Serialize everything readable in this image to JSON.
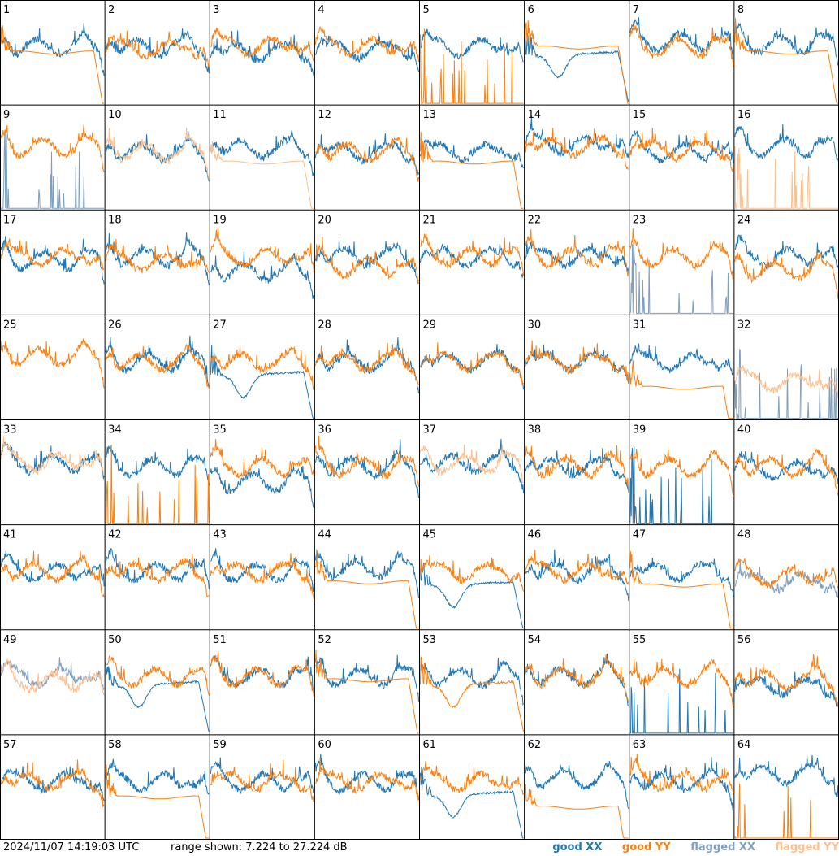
{
  "footer": {
    "timestamp": "2024/11/07 14:19:03 UTC",
    "range_text": "range shown: 7.224 to 27.224 dB"
  },
  "legend": [
    {
      "label": "good XX",
      "color": "#1f77b4"
    },
    {
      "label": "good YY",
      "color": "#ff7f0e"
    },
    {
      "label": "flagged XX",
      "color": "#7f9fbf"
    },
    {
      "label": "flagged YY",
      "color": "#ffbf8c"
    }
  ],
  "chart_data": {
    "type": "line",
    "grid_rows": 8,
    "grid_cols": 8,
    "ylim": [
      7.224,
      27.224
    ],
    "panels": [
      {
        "id": "1",
        "xx": {
          "status": "good",
          "shape": "normal",
          "level": 0.55
        },
        "yy": {
          "status": "good",
          "shape": "flat",
          "level": 0.5
        }
      },
      {
        "id": "2",
        "xx": {
          "status": "good",
          "shape": "normal",
          "level": 0.55
        },
        "yy": {
          "status": "good",
          "shape": "normal",
          "level": 0.53
        }
      },
      {
        "id": "3",
        "xx": {
          "status": "good",
          "shape": "normal",
          "level": 0.5
        },
        "yy": {
          "status": "good",
          "shape": "normal",
          "level": 0.56
        }
      },
      {
        "id": "4",
        "xx": {
          "status": "good",
          "shape": "normal",
          "level": 0.52
        },
        "yy": {
          "status": "good",
          "shape": "normal",
          "level": 0.55
        }
      },
      {
        "id": "5",
        "xx": {
          "status": "good",
          "shape": "normal",
          "level": 0.55
        },
        "yy": {
          "status": "good",
          "shape": "spikes_zero",
          "level": 0.0
        }
      },
      {
        "id": "6",
        "xx": {
          "status": "good",
          "shape": "dip",
          "level": 0.45
        },
        "yy": {
          "status": "good",
          "shape": "flat",
          "level": 0.55
        }
      },
      {
        "id": "7",
        "xx": {
          "status": "good",
          "shape": "normal",
          "level": 0.6
        },
        "yy": {
          "status": "good",
          "shape": "normal",
          "level": 0.55
        }
      },
      {
        "id": "8",
        "xx": {
          "status": "good",
          "shape": "normal",
          "level": 0.58
        },
        "yy": {
          "status": "good",
          "shape": "flat",
          "level": 0.5
        }
      },
      {
        "id": "9",
        "xx": {
          "status": "flagged",
          "shape": "spikes_zero",
          "level": 0.0
        },
        "yy": {
          "status": "good",
          "shape": "normal",
          "level": 0.6
        }
      },
      {
        "id": "10",
        "xx": {
          "status": "good",
          "shape": "normal",
          "level": 0.55
        },
        "yy": {
          "status": "flagged",
          "shape": "normal",
          "level": 0.55
        }
      },
      {
        "id": "11",
        "xx": {
          "status": "good",
          "shape": "normal",
          "level": 0.58
        },
        "yy": {
          "status": "flagged",
          "shape": "flat",
          "level": 0.45
        }
      },
      {
        "id": "12",
        "xx": {
          "status": "good",
          "shape": "normal",
          "level": 0.55
        },
        "yy": {
          "status": "good",
          "shape": "normal",
          "level": 0.55
        }
      },
      {
        "id": "13",
        "xx": {
          "status": "good",
          "shape": "normal",
          "level": 0.55
        },
        "yy": {
          "status": "good",
          "shape": "flat",
          "level": 0.45
        }
      },
      {
        "id": "14",
        "xx": {
          "status": "good",
          "shape": "normal",
          "level": 0.62
        },
        "yy": {
          "status": "good",
          "shape": "normal",
          "level": 0.6
        }
      },
      {
        "id": "15",
        "xx": {
          "status": "good",
          "shape": "normal",
          "level": 0.55
        },
        "yy": {
          "status": "good",
          "shape": "normal",
          "level": 0.57
        }
      },
      {
        "id": "16",
        "xx": {
          "status": "good",
          "shape": "normal",
          "level": 0.6
        },
        "yy": {
          "status": "flagged",
          "shape": "spikes_zero",
          "level": 0.0
        }
      },
      {
        "id": "17",
        "xx": {
          "status": "good",
          "shape": "normal",
          "level": 0.52
        },
        "yy": {
          "status": "good",
          "shape": "normal",
          "level": 0.55
        }
      },
      {
        "id": "18",
        "xx": {
          "status": "good",
          "shape": "normal",
          "level": 0.55
        },
        "yy": {
          "status": "good",
          "shape": "normal",
          "level": 0.5
        }
      },
      {
        "id": "19",
        "xx": {
          "status": "good",
          "shape": "normal",
          "level": 0.4
        },
        "yy": {
          "status": "good",
          "shape": "normal",
          "level": 0.55
        }
      },
      {
        "id": "20",
        "xx": {
          "status": "good",
          "shape": "normal",
          "level": 0.55
        },
        "yy": {
          "status": "good",
          "shape": "normal",
          "level": 0.45
        }
      },
      {
        "id": "21",
        "xx": {
          "status": "good",
          "shape": "normal",
          "level": 0.55
        },
        "yy": {
          "status": "good",
          "shape": "normal",
          "level": 0.55
        }
      },
      {
        "id": "22",
        "xx": {
          "status": "good",
          "shape": "normal",
          "level": 0.55
        },
        "yy": {
          "status": "good",
          "shape": "normal",
          "level": 0.55
        }
      },
      {
        "id": "23",
        "xx": {
          "status": "flagged",
          "shape": "spikes_zero",
          "level": 0.0
        },
        "yy": {
          "status": "good",
          "shape": "normal",
          "level": 0.55
        }
      },
      {
        "id": "24",
        "xx": {
          "status": "good",
          "shape": "normal",
          "level": 0.55
        },
        "yy": {
          "status": "good",
          "shape": "normal",
          "level": 0.42
        }
      },
      {
        "id": "25",
        "xx": {
          "status": "good",
          "shape": "hidden",
          "level": 0.6
        },
        "yy": {
          "status": "good",
          "shape": "normal",
          "level": 0.6
        }
      },
      {
        "id": "26",
        "xx": {
          "status": "good",
          "shape": "normal",
          "level": 0.55
        },
        "yy": {
          "status": "good",
          "shape": "normal",
          "level": 0.55
        }
      },
      {
        "id": "27",
        "xx": {
          "status": "good",
          "shape": "dip",
          "level": 0.4
        },
        "yy": {
          "status": "good",
          "shape": "normal",
          "level": 0.55
        }
      },
      {
        "id": "28",
        "xx": {
          "status": "good",
          "shape": "normal",
          "level": 0.55
        },
        "yy": {
          "status": "good",
          "shape": "normal",
          "level": 0.55
        }
      },
      {
        "id": "29",
        "xx": {
          "status": "good",
          "shape": "normal",
          "level": 0.55
        },
        "yy": {
          "status": "good",
          "shape": "normal",
          "level": 0.55
        }
      },
      {
        "id": "30",
        "xx": {
          "status": "good",
          "shape": "normal",
          "level": 0.55
        },
        "yy": {
          "status": "good",
          "shape": "normal",
          "level": 0.55
        }
      },
      {
        "id": "31",
        "xx": {
          "status": "good",
          "shape": "normal",
          "level": 0.55
        },
        "yy": {
          "status": "good",
          "shape": "flat",
          "level": 0.3
        }
      },
      {
        "id": "32",
        "xx": {
          "status": "flagged",
          "shape": "spikes_zero",
          "level": 0.0
        },
        "yy": {
          "status": "flagged",
          "shape": "normal",
          "level": 0.35
        }
      },
      {
        "id": "33",
        "xx": {
          "status": "good",
          "shape": "normal",
          "level": 0.58
        },
        "yy": {
          "status": "flagged",
          "shape": "normal",
          "level": 0.6
        }
      },
      {
        "id": "34",
        "xx": {
          "status": "good",
          "shape": "normal",
          "level": 0.55
        },
        "yy": {
          "status": "good",
          "shape": "spikes_zero",
          "level": 0.0
        }
      },
      {
        "id": "35",
        "xx": {
          "status": "good",
          "shape": "normal",
          "level": 0.4
        },
        "yy": {
          "status": "good",
          "shape": "normal",
          "level": 0.55
        }
      },
      {
        "id": "36",
        "xx": {
          "status": "good",
          "shape": "normal",
          "level": 0.55
        },
        "yy": {
          "status": "good",
          "shape": "normal",
          "level": 0.55
        }
      },
      {
        "id": "37",
        "xx": {
          "status": "good",
          "shape": "normal",
          "level": 0.58
        },
        "yy": {
          "status": "flagged",
          "shape": "normal",
          "level": 0.58
        }
      },
      {
        "id": "38",
        "xx": {
          "status": "good",
          "shape": "normal",
          "level": 0.55
        },
        "yy": {
          "status": "good",
          "shape": "normal",
          "level": 0.55
        }
      },
      {
        "id": "39",
        "xx": {
          "status": "good",
          "shape": "spikes_zero",
          "level": 0.0
        },
        "yy": {
          "status": "good",
          "shape": "normal",
          "level": 0.55
        }
      },
      {
        "id": "40",
        "xx": {
          "status": "good",
          "shape": "normal",
          "level": 0.52
        },
        "yy": {
          "status": "good",
          "shape": "normal",
          "level": 0.55
        }
      },
      {
        "id": "41",
        "xx": {
          "status": "good",
          "shape": "normal",
          "level": 0.55
        },
        "yy": {
          "status": "good",
          "shape": "normal",
          "level": 0.55
        }
      },
      {
        "id": "42",
        "xx": {
          "status": "good",
          "shape": "normal",
          "level": 0.55
        },
        "yy": {
          "status": "good",
          "shape": "normal",
          "level": 0.55
        }
      },
      {
        "id": "43",
        "xx": {
          "status": "good",
          "shape": "normal",
          "level": 0.55
        },
        "yy": {
          "status": "good",
          "shape": "normal",
          "level": 0.55
        }
      },
      {
        "id": "44",
        "xx": {
          "status": "good",
          "shape": "normal",
          "level": 0.58
        },
        "yy": {
          "status": "good",
          "shape": "flat",
          "level": 0.45
        }
      },
      {
        "id": "45",
        "xx": {
          "status": "good",
          "shape": "dip",
          "level": 0.4
        },
        "yy": {
          "status": "good",
          "shape": "normal",
          "level": 0.55
        }
      },
      {
        "id": "46",
        "xx": {
          "status": "good",
          "shape": "normal",
          "level": 0.55
        },
        "yy": {
          "status": "good",
          "shape": "normal",
          "level": 0.55
        }
      },
      {
        "id": "47",
        "xx": {
          "status": "good",
          "shape": "normal",
          "level": 0.55
        },
        "yy": {
          "status": "good",
          "shape": "flat",
          "level": 0.42
        }
      },
      {
        "id": "48",
        "xx": {
          "status": "flagged",
          "shape": "normal",
          "level": 0.45
        },
        "yy": {
          "status": "good",
          "shape": "normal",
          "level": 0.5
        }
      },
      {
        "id": "49",
        "xx": {
          "status": "flagged",
          "shape": "normal",
          "level": 0.55
        },
        "yy": {
          "status": "flagged",
          "shape": "normal",
          "level": 0.5
        }
      },
      {
        "id": "50",
        "xx": {
          "status": "good",
          "shape": "dip",
          "level": 0.45
        },
        "yy": {
          "status": "good",
          "shape": "normal",
          "level": 0.55
        }
      },
      {
        "id": "51",
        "xx": {
          "status": "good",
          "shape": "normal",
          "level": 0.55
        },
        "yy": {
          "status": "good",
          "shape": "normal",
          "level": 0.55
        }
      },
      {
        "id": "52",
        "xx": {
          "status": "good",
          "shape": "normal",
          "level": 0.55
        },
        "yy": {
          "status": "good",
          "shape": "flat",
          "level": 0.52
        }
      },
      {
        "id": "53",
        "xx": {
          "status": "good",
          "shape": "normal",
          "level": 0.55
        },
        "yy": {
          "status": "good",
          "shape": "dip",
          "level": 0.45
        }
      },
      {
        "id": "54",
        "xx": {
          "status": "good",
          "shape": "normal",
          "level": 0.55
        },
        "yy": {
          "status": "good",
          "shape": "normal",
          "level": 0.55
        }
      },
      {
        "id": "55",
        "xx": {
          "status": "good",
          "shape": "spikes_zero",
          "level": 0.0
        },
        "yy": {
          "status": "good",
          "shape": "normal",
          "level": 0.55
        }
      },
      {
        "id": "56",
        "xx": {
          "status": "good",
          "shape": "normal",
          "level": 0.45
        },
        "yy": {
          "status": "good",
          "shape": "normal",
          "level": 0.52
        }
      },
      {
        "id": "57",
        "xx": {
          "status": "good",
          "shape": "normal",
          "level": 0.55
        },
        "yy": {
          "status": "good",
          "shape": "normal",
          "level": 0.55
        }
      },
      {
        "id": "58",
        "xx": {
          "status": "good",
          "shape": "normal",
          "level": 0.55
        },
        "yy": {
          "status": "good",
          "shape": "flat",
          "level": 0.4
        }
      },
      {
        "id": "59",
        "xx": {
          "status": "good",
          "shape": "normal",
          "level": 0.55
        },
        "yy": {
          "status": "good",
          "shape": "normal",
          "level": 0.55
        }
      },
      {
        "id": "60",
        "xx": {
          "status": "good",
          "shape": "normal",
          "level": 0.55
        },
        "yy": {
          "status": "good",
          "shape": "normal",
          "level": 0.55
        }
      },
      {
        "id": "61",
        "xx": {
          "status": "good",
          "shape": "dip",
          "level": 0.4
        },
        "yy": {
          "status": "good",
          "shape": "normal",
          "level": 0.55
        }
      },
      {
        "id": "62",
        "xx": {
          "status": "good",
          "shape": "normal",
          "level": 0.58
        },
        "yy": {
          "status": "good",
          "shape": "flat",
          "level": 0.3
        }
      },
      {
        "id": "63",
        "xx": {
          "status": "good",
          "shape": "normal",
          "level": 0.55
        },
        "yy": {
          "status": "good",
          "shape": "normal",
          "level": 0.55
        }
      },
      {
        "id": "64",
        "xx": {
          "status": "good",
          "shape": "normal",
          "level": 0.62
        },
        "yy": {
          "status": "good",
          "shape": "spikes_zero",
          "level": 0.0
        }
      }
    ]
  }
}
